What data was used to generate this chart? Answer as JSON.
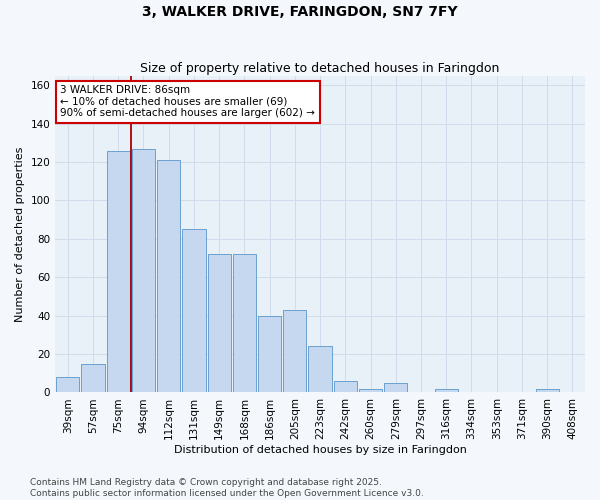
{
  "title": "3, WALKER DRIVE, FARINGDON, SN7 7FY",
  "subtitle": "Size of property relative to detached houses in Faringdon",
  "xlabel": "Distribution of detached houses by size in Faringdon",
  "ylabel": "Number of detached properties",
  "categories": [
    "39sqm",
    "57sqm",
    "75sqm",
    "94sqm",
    "112sqm",
    "131sqm",
    "149sqm",
    "168sqm",
    "186sqm",
    "205sqm",
    "223sqm",
    "242sqm",
    "260sqm",
    "279sqm",
    "297sqm",
    "316sqm",
    "334sqm",
    "353sqm",
    "371sqm",
    "390sqm",
    "408sqm"
  ],
  "values": [
    8,
    15,
    126,
    127,
    121,
    85,
    72,
    72,
    40,
    43,
    24,
    6,
    2,
    5,
    0,
    2,
    0,
    0,
    0,
    2,
    0
  ],
  "bar_color": "#c5d8f0",
  "bar_edge_color": "#6aa0d0",
  "vline_x": 2.5,
  "vline_color": "#aa0000",
  "annotation_text": "3 WALKER DRIVE: 86sqm\n← 10% of detached houses are smaller (69)\n90% of semi-detached houses are larger (602) →",
  "annotation_box_color": "#ffffff",
  "annotation_box_edge_color": "#cc0000",
  "ylim": [
    0,
    165
  ],
  "yticks": [
    0,
    20,
    40,
    60,
    80,
    100,
    120,
    140,
    160
  ],
  "grid_color": "#d0dcec",
  "plot_bg_color": "#e8f0f8",
  "fig_bg_color": "#f4f8fc",
  "footer_text": "Contains HM Land Registry data © Crown copyright and database right 2025.\nContains public sector information licensed under the Open Government Licence v3.0.",
  "title_fontsize": 10,
  "subtitle_fontsize": 9,
  "axis_label_fontsize": 8,
  "tick_fontsize": 7.5,
  "annotation_fontsize": 7.5,
  "footer_fontsize": 6.5
}
